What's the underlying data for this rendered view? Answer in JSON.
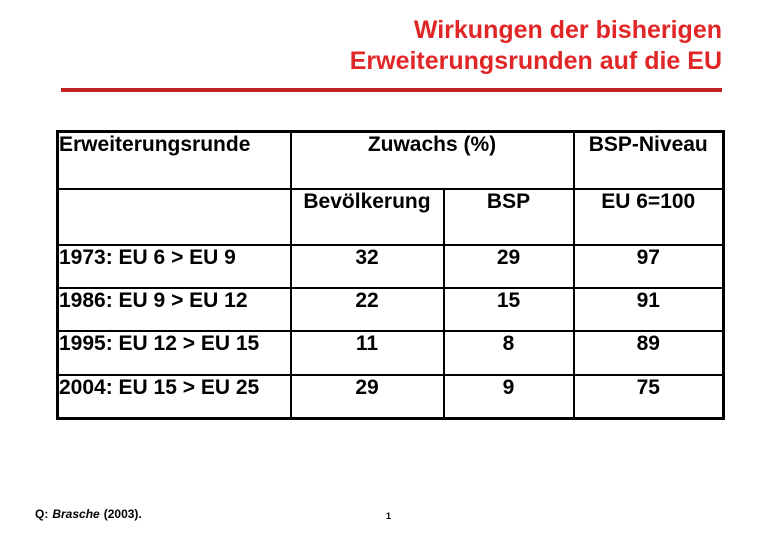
{
  "slide": {
    "title_line1": "Wirkungen der bisherigen",
    "title_line2": "Erweiterungsrunden auf die EU",
    "page_number": "1"
  },
  "source": {
    "prefix": "Q:",
    "author": "Brasche",
    "year_suffix": "(2003)."
  },
  "colors": {
    "title_red": "#E02626",
    "rule_red": "#C22121",
    "table_border": "#000000",
    "background": "#FFFFFF"
  },
  "table": {
    "header": {
      "round": "Erweiterungsrunde",
      "growth": "Zuwachs (%)",
      "gnp_level": "BSP-Niveau",
      "population": "Bevölkerung",
      "gnp": "BSP",
      "base": "EU 6=100"
    },
    "rows": [
      {
        "round": "1973: EU 6 > EU 9",
        "population": "32",
        "gnp": "29",
        "level": "97"
      },
      {
        "round": "1986: EU 9 > EU 12",
        "population": "22",
        "gnp": "15",
        "level": "91"
      },
      {
        "round": "1995: EU 12 > EU 15",
        "population": "11",
        "gnp": "8",
        "level": "89"
      },
      {
        "round": "2004: EU 15 > EU 25",
        "population": "29",
        "gnp": "9",
        "level": "75"
      }
    ]
  },
  "chart_data": {
    "type": "table",
    "title": "Wirkungen der bisherigen Erweiterungsrunden auf die EU",
    "columns": [
      "Erweiterungsrunde",
      "Zuwachs (%) Bevölkerung",
      "Zuwachs (%) BSP",
      "BSP-Niveau EU 6=100"
    ],
    "rows": [
      [
        "1973: EU 6 > EU 9",
        32,
        29,
        97
      ],
      [
        "1986: EU 9 > EU 12",
        22,
        15,
        91
      ],
      [
        "1995: EU 12 > EU 15",
        11,
        8,
        89
      ],
      [
        "2004: EU 15 > EU 25",
        29,
        9,
        75
      ]
    ]
  }
}
